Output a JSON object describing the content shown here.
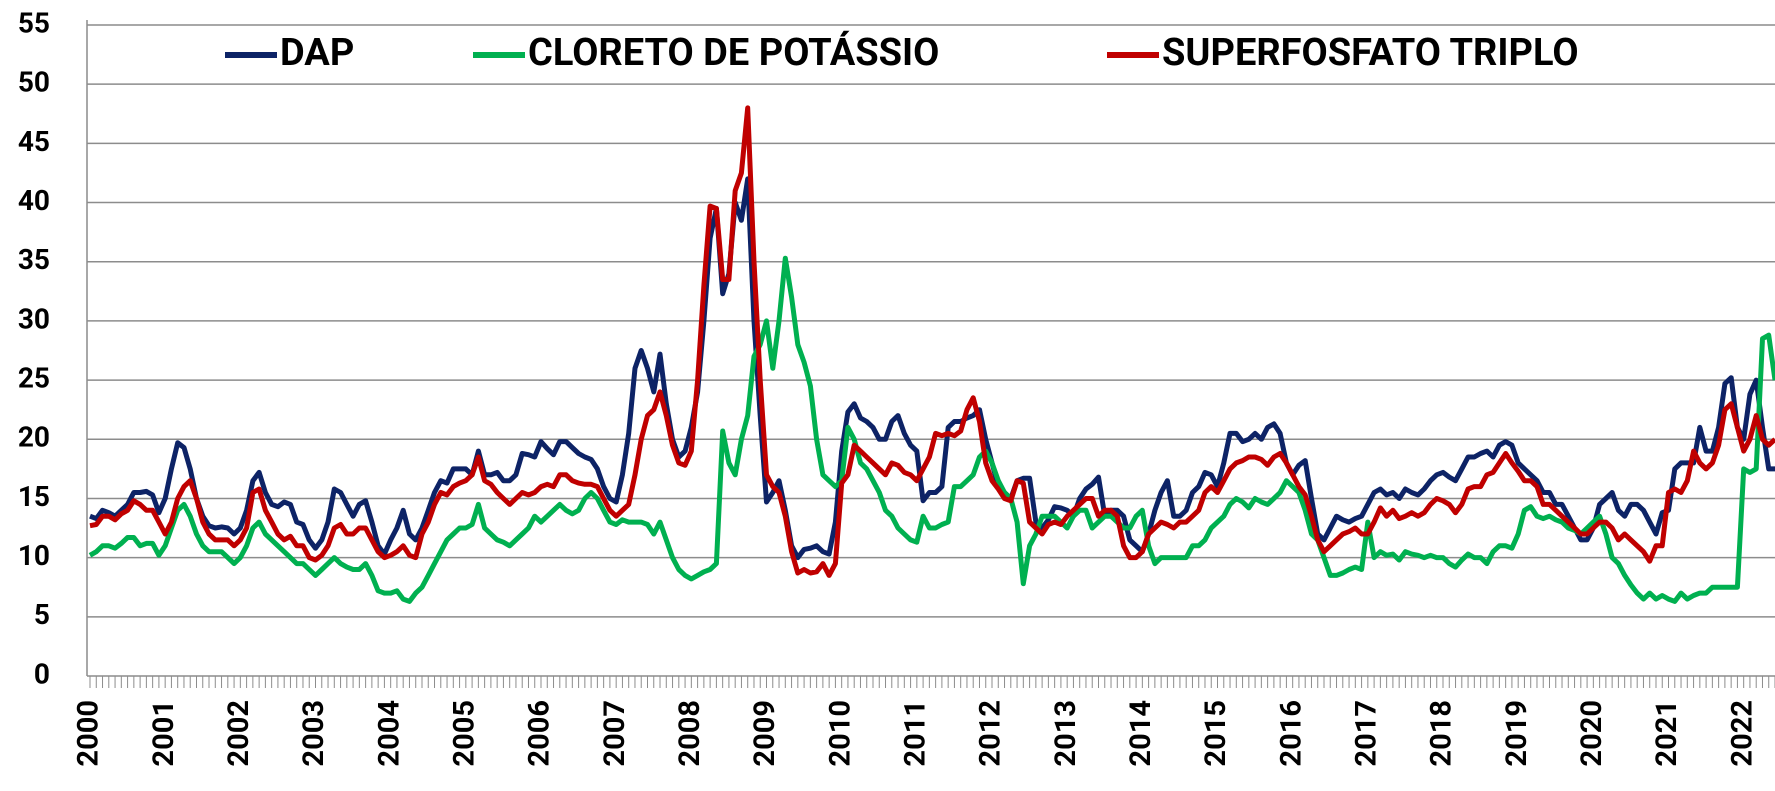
{
  "chart_data": {
    "type": "line",
    "categories": [
      "2000",
      null,
      null,
      null,
      null,
      null,
      null,
      null,
      null,
      null,
      null,
      null,
      "2001",
      null,
      null,
      null,
      null,
      null,
      null,
      null,
      null,
      null,
      null,
      null,
      "2002",
      null,
      null,
      null,
      null,
      null,
      null,
      null,
      null,
      null,
      null,
      null,
      "2003",
      null,
      null,
      null,
      null,
      null,
      null,
      null,
      null,
      null,
      null,
      null,
      "2004",
      null,
      null,
      null,
      null,
      null,
      null,
      null,
      null,
      null,
      null,
      null,
      "2005",
      null,
      null,
      null,
      null,
      null,
      null,
      null,
      null,
      null,
      null,
      null,
      "2006",
      null,
      null,
      null,
      null,
      null,
      null,
      null,
      null,
      null,
      null,
      null,
      "2007",
      null,
      null,
      null,
      null,
      null,
      null,
      null,
      null,
      null,
      null,
      null,
      "2008",
      null,
      null,
      null,
      null,
      null,
      null,
      null,
      null,
      null,
      null,
      null,
      "2009",
      null,
      null,
      null,
      null,
      null,
      null,
      null,
      null,
      null,
      null,
      null,
      "2010",
      null,
      null,
      null,
      null,
      null,
      null,
      null,
      null,
      null,
      null,
      null,
      "2011",
      null,
      null,
      null,
      null,
      null,
      null,
      null,
      null,
      null,
      null,
      null,
      "2012",
      null,
      null,
      null,
      null,
      null,
      null,
      null,
      null,
      null,
      null,
      null,
      "2013",
      null,
      null,
      null,
      null,
      null,
      null,
      null,
      null,
      null,
      null,
      null,
      "2014",
      null,
      null,
      null,
      null,
      null,
      null,
      null,
      null,
      null,
      null,
      null,
      "2015",
      null,
      null,
      null,
      null,
      null,
      null,
      null,
      null,
      null,
      null,
      null,
      "2016",
      null,
      null,
      null,
      null,
      null,
      null,
      null,
      null,
      null,
      null,
      null,
      "2017",
      null,
      null,
      null,
      null,
      null,
      null,
      null,
      null,
      null,
      null,
      null,
      "2018",
      null,
      null,
      null,
      null,
      null,
      null,
      null,
      null,
      null,
      null,
      null,
      "2019",
      null,
      null,
      null,
      null,
      null,
      null,
      null,
      null,
      null,
      null,
      null,
      "2020",
      null,
      null,
      null,
      null,
      null,
      null,
      null,
      null,
      null,
      null,
      null,
      "2021",
      null,
      null,
      null,
      null,
      null,
      null,
      null,
      null,
      null,
      null,
      null,
      "2022",
      null,
      null,
      null,
      null,
      null
    ],
    "series": [
      {
        "name": "DAP",
        "color": "#0d2366",
        "values": [
          13.5,
          13.3,
          14,
          13.8,
          13.5,
          14,
          14.5,
          15.5,
          15.5,
          15.6,
          15.3,
          13.8,
          15,
          17.5,
          19.7,
          19.3,
          17.5,
          15,
          13.5,
          12.7,
          12.5,
          12.6,
          12.5,
          12,
          12.5,
          14,
          16.5,
          17.2,
          15.5,
          14.5,
          14.3,
          14.7,
          14.5,
          13,
          12.8,
          11.5,
          10.8,
          11.5,
          13,
          15.8,
          15.5,
          14.5,
          13.5,
          14.5,
          14.8,
          13,
          11,
          10.3,
          11.5,
          12.5,
          14,
          12,
          11.5,
          12.5,
          14,
          15.5,
          16.5,
          16.3,
          17.5,
          17.5,
          17.5,
          17,
          19,
          17,
          17,
          17.2,
          16.5,
          16.5,
          17,
          18.8,
          18.7,
          18.5,
          19.8,
          19.2,
          18.7,
          19.8,
          19.8,
          19.3,
          18.8,
          18.5,
          18.3,
          17.5,
          16,
          15,
          14.7,
          17,
          20.5,
          26,
          27.5,
          26,
          24,
          27.2,
          23,
          20,
          18.5,
          19,
          21,
          24,
          30,
          37,
          39.5,
          32.3,
          34,
          40,
          38.5,
          42,
          30,
          22,
          14.7,
          15.5,
          16.5,
          14,
          11,
          10,
          10.7,
          10.8,
          11,
          10.5,
          10.3,
          13,
          19,
          22.3,
          23,
          21.8,
          21.5,
          21,
          20,
          20,
          21.5,
          22,
          20.5,
          19.5,
          19,
          14.8,
          15.5,
          15.5,
          16,
          21,
          21.5,
          21.5,
          21.8,
          22,
          22.5,
          20,
          18,
          16,
          15.5,
          15,
          16.5,
          16.7,
          16.7,
          13,
          12.5,
          13.2,
          14.3,
          14.2,
          14,
          13.5,
          15,
          15.8,
          16.2,
          16.8,
          13.5,
          14,
          14,
          13.5,
          11.5,
          11,
          10.5,
          12,
          14,
          15.5,
          16.5,
          13.5,
          13.5,
          14,
          15.5,
          16,
          17.2,
          17,
          16,
          18,
          20.5,
          20.5,
          19.8,
          20,
          20.5,
          20,
          21,
          21.3,
          20.5,
          18,
          17,
          17.8,
          18.2,
          15,
          12,
          11.5,
          12.5,
          13.5,
          13.2,
          13,
          13.3,
          13.5,
          14.5,
          15.5,
          15.8,
          15.3,
          15.5,
          15,
          15.8,
          15.5,
          15.3,
          15.8,
          16.5,
          17,
          17.2,
          16.8,
          16.5,
          17.5,
          18.5,
          18.5,
          18.8,
          19,
          18.5,
          19.5,
          19.8,
          19.5,
          18,
          17.5,
          17,
          16.5,
          15.5,
          15.5,
          14.5,
          14.5,
          13.5,
          12.5,
          11.5,
          11.5,
          12.5,
          14.5,
          15,
          15.5,
          14,
          13.5,
          14.5,
          14.5,
          14,
          13,
          12,
          13.8,
          14,
          17.5,
          18,
          18,
          18,
          21,
          19,
          19,
          21,
          24.7,
          25.2,
          21,
          20,
          23.8,
          25,
          21,
          17.5,
          17.5
        ]
      },
      {
        "name": "CLORETO DE POTÁSSIO",
        "color": "#00b050",
        "values": [
          10.2,
          10.5,
          11,
          11,
          10.8,
          11.2,
          11.7,
          11.7,
          11,
          11.2,
          11.2,
          10.2,
          11,
          12.5,
          14,
          14.5,
          13.5,
          12,
          11,
          10.5,
          10.5,
          10.5,
          10,
          9.5,
          10,
          11,
          12.5,
          13,
          12,
          11.5,
          11,
          10.5,
          10,
          9.5,
          9.5,
          9,
          8.5,
          9,
          9.5,
          10,
          9.5,
          9.2,
          9,
          9,
          9.5,
          8.5,
          7.2,
          7,
          7,
          7.2,
          6.5,
          6.3,
          7,
          7.5,
          8.5,
          9.5,
          10.5,
          11.5,
          12,
          12.5,
          12.5,
          12.8,
          14.5,
          12.5,
          12,
          11.5,
          11.3,
          11,
          11.5,
          12,
          12.5,
          13.5,
          13,
          13.5,
          14,
          14.5,
          14,
          13.7,
          14,
          15,
          15.5,
          15,
          14,
          13,
          12.8,
          13.2,
          13,
          13,
          13,
          12.8,
          12,
          13,
          11.5,
          10,
          9,
          8.5,
          8.2,
          8.5,
          8.8,
          9,
          9.5,
          20.7,
          18,
          17,
          20,
          22,
          27,
          28,
          30,
          26,
          30,
          35.3,
          32,
          28,
          26.5,
          24.5,
          20,
          17,
          16.5,
          16,
          16.5,
          21,
          20,
          18,
          17.5,
          16.5,
          15.5,
          14,
          13.5,
          12.5,
          12,
          11.5,
          11.3,
          13.5,
          12.5,
          12.5,
          12.8,
          13,
          16,
          16,
          16.5,
          17,
          18.5,
          19,
          18,
          16.5,
          15.5,
          15,
          13,
          7.8,
          11,
          12,
          13.5,
          13.5,
          13.5,
          13,
          12.5,
          13.5,
          14,
          14,
          12.5,
          13,
          13.5,
          13.5,
          13,
          12.5,
          12.5,
          13.5,
          14,
          11,
          9.5,
          10,
          10,
          10,
          10,
          10,
          11,
          11,
          11.5,
          12.5,
          13,
          13.5,
          14.5,
          15,
          14.7,
          14.2,
          15,
          14.7,
          14.5,
          15,
          15.5,
          16.5,
          16,
          15.5,
          14,
          12,
          11.5,
          10,
          8.5,
          8.5,
          8.7,
          9,
          9.2,
          9,
          13,
          10,
          10.5,
          10.2,
          10.3,
          9.8,
          10.5,
          10.3,
          10.2,
          10,
          10.2,
          10,
          10,
          9.5,
          9.2,
          9.8,
          10.3,
          10,
          10,
          9.5,
          10.5,
          11,
          11,
          10.8,
          12,
          14,
          14.3,
          13.5,
          13.3,
          13.5,
          13.2,
          13,
          12.5,
          12.3,
          12,
          12.5,
          13,
          13.5,
          12,
          10,
          9.5,
          8.5,
          7.7,
          7,
          6.5,
          7,
          6.5,
          6.8,
          6.5,
          6.3,
          7,
          6.5,
          6.8,
          7,
          7,
          7.5,
          7.5,
          7.5,
          7.5,
          7.5,
          17.5,
          17.2,
          17.5,
          28.5,
          28.8,
          25
        ]
      },
      {
        "name": "SUPERFOSFATO TRIPLO",
        "color": "#c00000",
        "values": [
          12.7,
          12.8,
          13.5,
          13.5,
          13.2,
          13.7,
          14,
          14.8,
          14.5,
          14,
          14,
          13,
          12,
          13,
          15,
          16,
          16.5,
          15,
          13,
          12,
          11.5,
          11.5,
          11.5,
          11,
          11.5,
          12.5,
          15.5,
          15.8,
          14,
          13,
          12,
          11.5,
          11.8,
          11,
          11,
          10,
          9.8,
          10.2,
          11,
          12.5,
          12.8,
          12,
          12,
          12.5,
          12.5,
          11.5,
          10.5,
          10,
          10.2,
          10.5,
          11,
          10.2,
          10,
          12,
          13,
          14.5,
          15.5,
          15.3,
          16,
          16.3,
          16.5,
          17,
          18.5,
          16.5,
          16.2,
          15.5,
          15,
          14.5,
          15,
          15.5,
          15.3,
          15.5,
          16,
          16.2,
          16,
          17,
          17,
          16.5,
          16.3,
          16.2,
          16.2,
          16,
          15,
          14,
          13.5,
          14,
          14.5,
          17,
          20,
          22,
          22.5,
          24,
          22,
          19.5,
          18,
          17.8,
          19,
          25,
          33,
          39.7,
          39.5,
          33.5,
          33.5,
          41,
          42.5,
          48,
          35,
          25,
          17,
          16,
          15.5,
          13.5,
          10.5,
          8.7,
          9,
          8.7,
          8.8,
          9.5,
          8.5,
          9.5,
          16.3,
          17,
          19.5,
          19,
          18.5,
          18,
          17.5,
          17,
          18,
          17.8,
          17.2,
          17,
          16.5,
          17.5,
          18.5,
          20.5,
          20.3,
          20.5,
          20.3,
          20.7,
          22.5,
          23.5,
          21.5,
          18,
          16.5,
          15.8,
          15,
          14.8,
          16.5,
          16.3,
          13,
          12.5,
          12,
          12.8,
          13,
          12.8,
          13.5,
          14,
          14.5,
          15,
          15,
          13.5,
          14,
          14,
          13.5,
          11,
          10,
          10,
          10.5,
          12,
          12.5,
          13,
          12.8,
          12.5,
          13,
          13,
          13.5,
          14,
          15.5,
          16,
          15.5,
          16.5,
          17.5,
          18,
          18.2,
          18.5,
          18.5,
          18.3,
          17.8,
          18.5,
          18.8,
          18,
          17,
          16,
          15.3,
          13.5,
          11.5,
          10.5,
          11,
          11.5,
          12,
          12.2,
          12.5,
          12,
          12,
          13,
          14.2,
          13.5,
          14,
          13.3,
          13.5,
          13.8,
          13.5,
          13.8,
          14.5,
          15,
          14.8,
          14.5,
          13.8,
          14.5,
          15.8,
          16,
          16,
          17,
          17.2,
          18,
          18.8,
          18,
          17.3,
          16.5,
          16.5,
          16,
          14.5,
          14.5,
          14,
          13.5,
          13,
          12.5,
          12,
          12,
          12.5,
          13,
          13,
          12.5,
          11.5,
          12,
          11.5,
          11,
          10.5,
          9.7,
          11,
          11,
          15.5,
          15.8,
          15.5,
          16.5,
          19,
          18,
          17.5,
          18,
          19.5,
          22.5,
          23,
          21,
          19,
          20,
          22,
          20,
          19.5,
          20
        ]
      }
    ],
    "ylim": [
      0,
      55
    ],
    "yticks": [
      0,
      5,
      10,
      15,
      20,
      25,
      30,
      35,
      40,
      45,
      50,
      55
    ],
    "grid": true,
    "legend": "top"
  }
}
